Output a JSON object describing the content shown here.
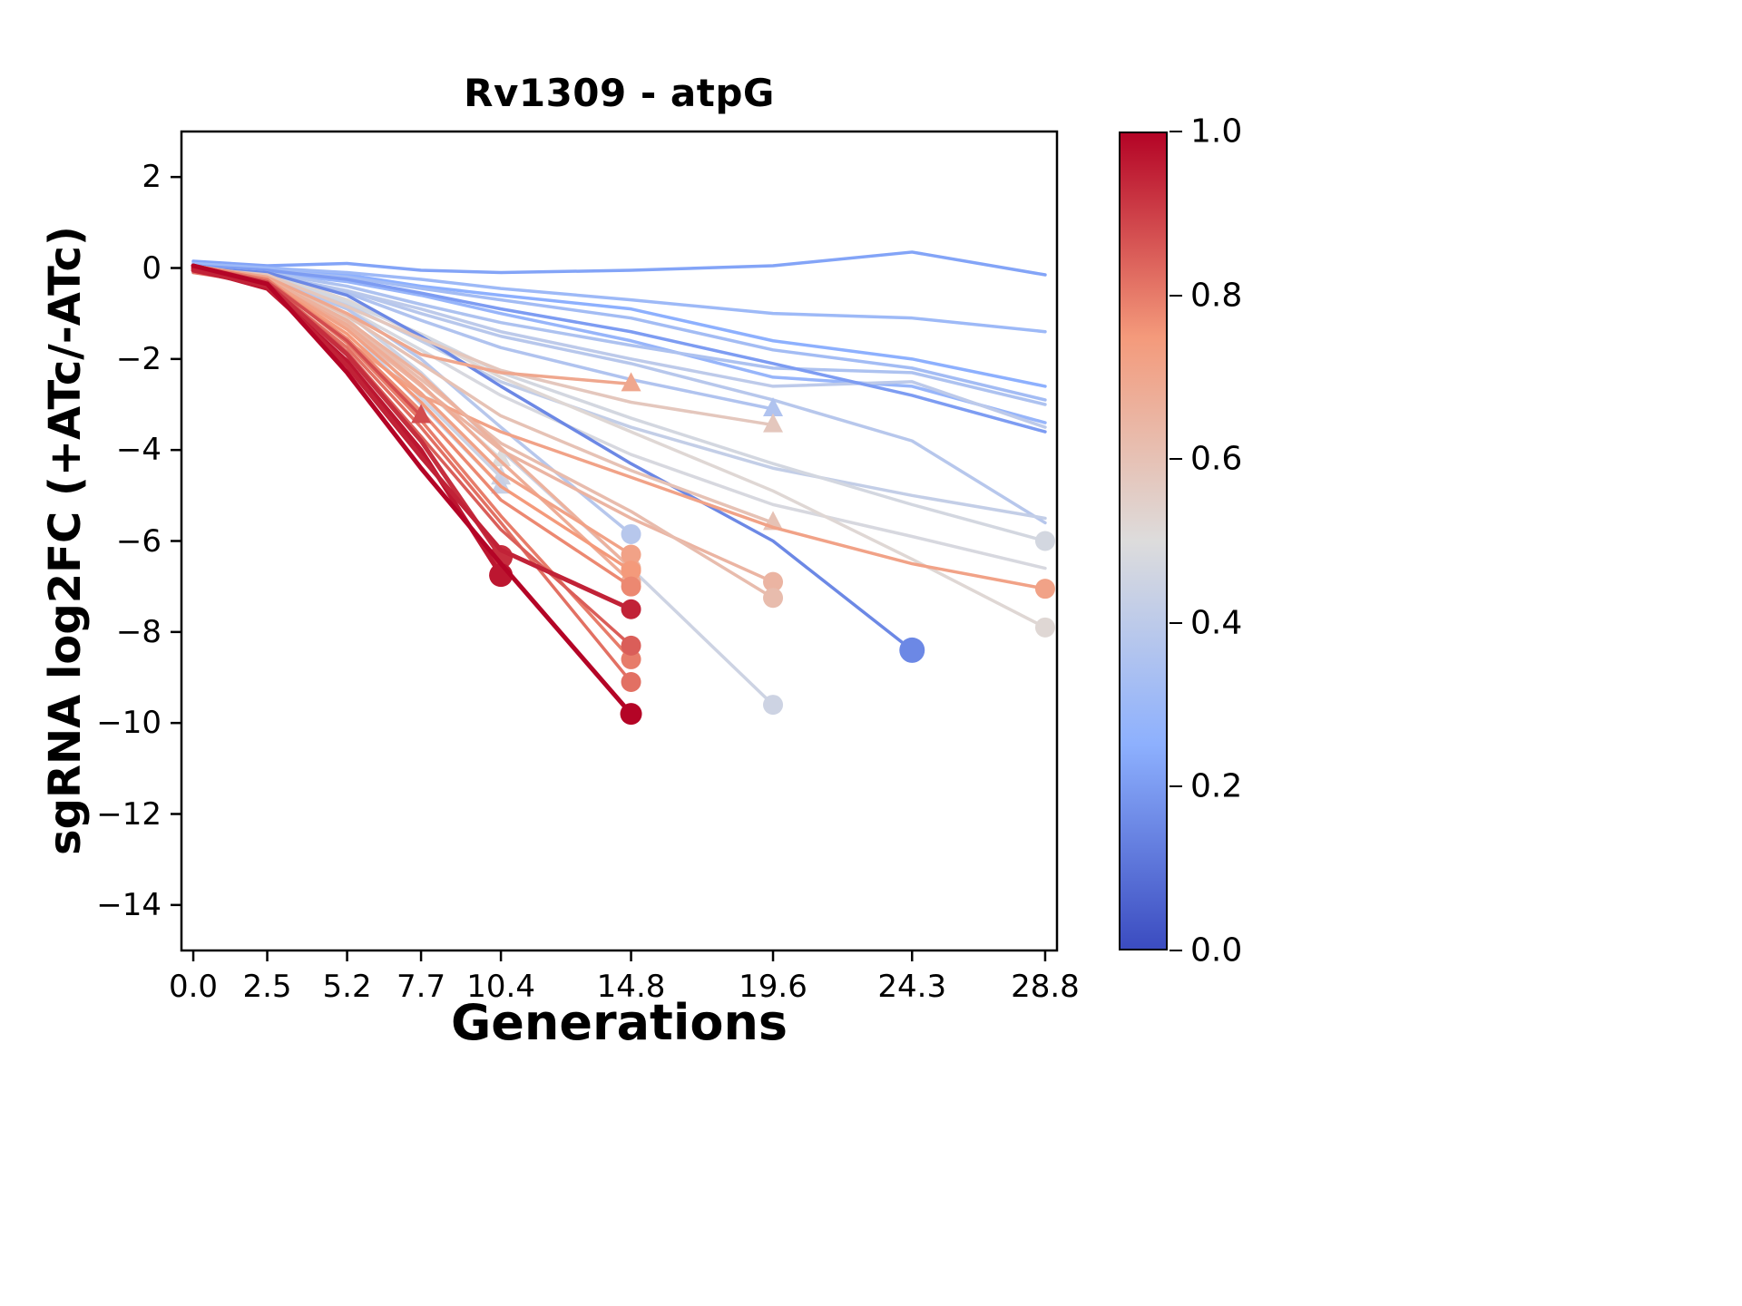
{
  "chart_data": {
    "type": "line",
    "title": "Rv1309 - atpG",
    "xlabel": "Generations",
    "ylabel": "sgRNA log2FC (+ATc/-ATc)",
    "xlim": [
      -0.4,
      29.2
    ],
    "ylim": [
      -15,
      3
    ],
    "grid": false,
    "legend": "none",
    "x_ticks": [
      0.0,
      2.5,
      5.2,
      7.7,
      10.4,
      14.8,
      19.6,
      24.3,
      28.8
    ],
    "x_tick_labels": [
      "0.0",
      "2.5",
      "5.2",
      "7.7",
      "10.4",
      "14.8",
      "19.6",
      "24.3",
      "28.8"
    ],
    "y_ticks": [
      2,
      0,
      -2,
      -4,
      -6,
      -8,
      -10,
      -12,
      -14
    ],
    "y_tick_labels": [
      "2",
      "0",
      "−2",
      "−4",
      "−6",
      "−8",
      "−10",
      "−12",
      "−14"
    ],
    "colorbar": {
      "cmap": "coolwarm",
      "anchors": [
        [
          0.0,
          "#3B4CC0"
        ],
        [
          0.25,
          "#8DB0FE"
        ],
        [
          0.5,
          "#DDDCDC"
        ],
        [
          0.75,
          "#F49A7B"
        ],
        [
          1.0,
          "#B40426"
        ]
      ],
      "tick_values": [
        0.0,
        0.2,
        0.4,
        0.6,
        0.8,
        1.0
      ],
      "tick_labels": [
        "0.0",
        "0.2",
        "0.4",
        "0.6",
        "0.8",
        "1.0"
      ]
    },
    "series": [
      {
        "v": 0.22,
        "marker": "none",
        "x": [
          0,
          2.5,
          5.2,
          7.7,
          10.4,
          14.8,
          19.6,
          24.3,
          28.8
        ],
        "y": [
          0.15,
          0.05,
          0.1,
          -0.05,
          -0.1,
          -0.05,
          0.05,
          0.35,
          -0.15
        ]
      },
      {
        "v": 0.25,
        "marker": "none",
        "x": [
          0,
          2.5,
          5.2,
          7.7,
          10.4,
          14.8,
          19.6,
          24.3,
          28.8
        ],
        "y": [
          0.1,
          0,
          -0.15,
          -0.4,
          -0.6,
          -0.9,
          -1.6,
          -2.0,
          -2.6
        ]
      },
      {
        "v": 0.3,
        "marker": "none",
        "x": [
          0,
          2.5,
          5.2,
          7.7,
          10.4,
          14.8,
          19.6,
          24.3,
          28.8
        ],
        "y": [
          0.1,
          0,
          -0.1,
          -0.25,
          -0.45,
          -0.7,
          -1.0,
          -1.1,
          -1.4
        ]
      },
      {
        "v": 0.32,
        "marker": "none",
        "x": [
          0,
          2.5,
          5.2,
          7.7,
          10.4,
          14.8,
          19.6,
          24.3,
          28.8
        ],
        "y": [
          0.05,
          -0.05,
          -0.2,
          -0.45,
          -0.7,
          -1.1,
          -1.8,
          -2.2,
          -2.9
        ]
      },
      {
        "v": 0.28,
        "marker": "none",
        "x": [
          0,
          2.5,
          5.2,
          7.7,
          10.4,
          14.8,
          19.6,
          24.3,
          28.8
        ],
        "y": [
          0,
          -0.1,
          -0.3,
          -0.6,
          -1.0,
          -1.6,
          -2.4,
          -2.6,
          -3.4
        ]
      },
      {
        "v": 0.35,
        "marker": "none",
        "x": [
          0,
          2.5,
          5.2,
          7.7,
          10.4,
          14.8,
          19.6,
          24.3,
          28.8
        ],
        "y": [
          0,
          -0.1,
          -0.4,
          -0.8,
          -1.2,
          -1.7,
          -2.2,
          -2.3,
          -3.0
        ]
      },
      {
        "v": 0.4,
        "marker": "none",
        "x": [
          0,
          2.5,
          5.2,
          7.7,
          10.4,
          14.8,
          19.6,
          24.3,
          28.8
        ],
        "y": [
          -0.1,
          -0.2,
          -0.5,
          -0.9,
          -1.4,
          -2.0,
          -2.6,
          -2.5,
          -3.5
        ]
      },
      {
        "v": 0.2,
        "marker": "none",
        "x": [
          0,
          2.5,
          5.2,
          7.7,
          10.4,
          14.8,
          19.6,
          24.3,
          28.8
        ],
        "y": [
          0.05,
          -0.05,
          -0.25,
          -0.55,
          -0.9,
          -1.4,
          -2.1,
          -2.8,
          -3.6
        ]
      },
      {
        "v": 0.38,
        "marker": "none",
        "x": [
          0,
          2.5,
          5.2,
          7.7,
          10.4,
          14.8,
          19.6,
          24.3,
          28.8
        ],
        "y": [
          0,
          -0.15,
          -0.5,
          -1.0,
          -1.5,
          -2.1,
          -2.9,
          -3.8,
          -5.6
        ]
      },
      {
        "v": 0.42,
        "marker": "none",
        "x": [
          0,
          2.5,
          5.2,
          7.7,
          10.4,
          14.8,
          19.6,
          24.3,
          28.8
        ],
        "y": [
          0,
          -0.2,
          -0.8,
          -1.6,
          -2.5,
          -3.5,
          -4.4,
          -5.0,
          -5.5
        ]
      },
      {
        "v": 0.48,
        "marker": "none",
        "x": [
          0,
          2.5,
          5.2,
          7.7,
          10.4,
          14.8,
          19.6,
          24.3,
          28.8
        ],
        "y": [
          -0.1,
          -0.25,
          -0.9,
          -1.8,
          -2.8,
          -4.1,
          -5.2,
          -5.9,
          -6.6
        ]
      },
      {
        "v": 0.52,
        "marker": "circle",
        "x": [
          0,
          2.5,
          5.2,
          7.7,
          10.4,
          14.8,
          19.6,
          24.3,
          28.8
        ],
        "y": [
          0,
          -0.1,
          -0.7,
          -1.5,
          -2.4,
          -3.6,
          -4.9,
          -6.4,
          -7.9
        ]
      },
      {
        "v": 0.47,
        "marker": "circle",
        "x": [
          0,
          2.5,
          5.2,
          7.7,
          10.4,
          14.8,
          19.6,
          24.3,
          28.8
        ],
        "y": [
          0,
          -0.15,
          -0.75,
          -1.45,
          -2.3,
          -3.3,
          -4.3,
          -5.2,
          -6.0
        ]
      },
      {
        "v": 0.36,
        "marker": "triangle",
        "x": [
          0,
          2.5,
          5.2,
          7.7,
          10.4,
          14.8,
          19.6
        ],
        "y": [
          0,
          -0.1,
          -0.55,
          -1.15,
          -1.75,
          -2.45,
          -3.1
        ]
      },
      {
        "v": 0.45,
        "marker": "circle",
        "x": [
          0,
          2.5,
          5.2,
          7.7,
          10.4,
          14.8,
          19.6
        ],
        "y": [
          0,
          -0.2,
          -1.0,
          -2.3,
          -4.0,
          -6.6,
          -9.6
        ]
      },
      {
        "v": 0.38,
        "marker": "circle",
        "x": [
          0,
          2.5,
          5.2,
          7.7,
          10.4,
          14.8
        ],
        "y": [
          0,
          -0.2,
          -0.9,
          -2.0,
          -3.5,
          -5.85
        ]
      },
      {
        "v": 0.15,
        "marker": "circle",
        "ms": 14,
        "x": [
          0,
          2.5,
          5.2,
          7.7,
          10.4,
          14.8,
          19.6,
          24.3
        ],
        "y": [
          0,
          -0.1,
          -0.6,
          -1.5,
          -2.6,
          -4.3,
          -6.0,
          -8.4
        ]
      },
      {
        "v": 0.5,
        "marker": "triangle",
        "x": [
          0,
          2.5,
          5.2,
          7.7,
          10.4
        ],
        "y": [
          0,
          -0.2,
          -1.1,
          -2.6,
          -4.2
        ]
      },
      {
        "v": 0.45,
        "marker": "triangle",
        "x": [
          0,
          2.5,
          5.2,
          7.7,
          10.4
        ],
        "y": [
          0,
          -0.25,
          -1.2,
          -2.85,
          -4.6
        ]
      },
      {
        "v": 0.43,
        "marker": "triangle",
        "x": [
          0,
          2.5,
          5.2,
          7.7,
          10.4
        ],
        "y": [
          0.05,
          -0.3,
          -1.3,
          -3.0,
          -4.8
        ]
      },
      {
        "v": 0.6,
        "marker": "triangle",
        "x": [
          0,
          2.5,
          5.2,
          7.7,
          10.4,
          14.8,
          19.6
        ],
        "y": [
          0,
          -0.2,
          -1.05,
          -2.1,
          -3.25,
          -4.45,
          -5.6
        ]
      },
      {
        "v": 0.58,
        "marker": "triangle",
        "x": [
          0,
          2.5,
          5.2,
          7.7,
          10.4,
          14.8,
          19.6
        ],
        "y": [
          0,
          -0.15,
          -0.85,
          -1.55,
          -2.25,
          -2.95,
          -3.45
        ]
      },
      {
        "v": 0.65,
        "marker": "circle",
        "x": [
          0,
          2.5,
          5.2,
          7.7,
          10.4,
          14.8,
          19.6
        ],
        "y": [
          0,
          -0.3,
          -1.3,
          -2.6,
          -4.0,
          -5.5,
          -6.9
        ]
      },
      {
        "v": 0.62,
        "marker": "circle",
        "x": [
          0,
          2.5,
          5.2,
          7.7,
          10.4,
          14.8,
          19.6
        ],
        "y": [
          0,
          -0.25,
          -1.2,
          -2.45,
          -3.85,
          -5.35,
          -7.25
        ]
      },
      {
        "v": 0.72,
        "marker": "circle",
        "x": [
          0,
          2.5,
          5.2,
          7.7,
          10.4,
          14.8,
          19.6,
          24.3,
          28.8
        ],
        "y": [
          0,
          -0.3,
          -1.6,
          -2.8,
          -3.6,
          -4.6,
          -5.7,
          -6.5,
          -7.05
        ]
      },
      {
        "v": 0.7,
        "marker": "triangle",
        "x": [
          0,
          2.5,
          5.2,
          7.7,
          10.4,
          14.8
        ],
        "y": [
          0.05,
          -0.2,
          -1.0,
          -1.9,
          -2.3,
          -2.55
        ]
      },
      {
        "v": 0.66,
        "marker": "circle",
        "x": [
          0,
          2.5,
          5.2,
          7.7,
          10.4,
          14.8
        ],
        "y": [
          -0.05,
          -0.25,
          -1.15,
          -2.35,
          -3.95,
          -6.6
        ]
      },
      {
        "v": 0.68,
        "marker": "circle",
        "x": [
          0,
          2.5,
          5.2,
          7.7,
          10.4,
          14.8
        ],
        "y": [
          0,
          -0.3,
          -1.25,
          -2.55,
          -4.25,
          -6.9
        ]
      },
      {
        "v": 0.72,
        "marker": "circle",
        "x": [
          0,
          2.5,
          5.2,
          7.7,
          10.4,
          14.8
        ],
        "y": [
          0,
          -0.25,
          -1.35,
          -2.75,
          -4.5,
          -6.3
        ]
      },
      {
        "v": 0.75,
        "marker": "circle",
        "x": [
          0,
          2.5,
          5.2,
          7.7,
          10.4,
          14.8
        ],
        "y": [
          -0.05,
          -0.3,
          -1.45,
          -2.95,
          -4.8,
          -6.65
        ]
      },
      {
        "v": 0.78,
        "marker": "circle",
        "x": [
          0,
          2.5,
          5.2,
          7.7,
          10.4,
          14.8
        ],
        "y": [
          0,
          -0.3,
          -1.55,
          -3.15,
          -5.1,
          -7.0
        ]
      },
      {
        "v": 0.8,
        "marker": "circle",
        "x": [
          0,
          2.5,
          5.2,
          7.7,
          10.4,
          14.8
        ],
        "y": [
          0.05,
          -0.25,
          -1.65,
          -3.35,
          -5.45,
          -8.6
        ]
      },
      {
        "v": 0.82,
        "marker": "circle",
        "x": [
          0,
          2.5,
          5.2,
          7.7,
          10.4,
          14.8
        ],
        "y": [
          -0.1,
          -0.35,
          -1.75,
          -3.5,
          -5.6,
          -9.1
        ]
      },
      {
        "v": 0.85,
        "marker": "circle",
        "x": [
          0,
          2.5,
          5.2,
          7.7,
          10.4,
          14.8
        ],
        "y": [
          0,
          -0.3,
          -1.85,
          -3.7,
          -5.75,
          -8.3
        ]
      },
      {
        "v": 0.88,
        "marker": "triangle",
        "x": [
          0,
          2.5,
          5.2,
          7.7
        ],
        "y": [
          0.05,
          -0.3,
          -1.6,
          -3.25
        ]
      },
      {
        "v": 0.93,
        "marker": "circle",
        "lw": 5,
        "ms": 13,
        "x": [
          0,
          2.5,
          5.2,
          7.7,
          10.4
        ],
        "y": [
          0.05,
          -0.35,
          -1.9,
          -3.8,
          -6.35
        ]
      },
      {
        "v": 0.97,
        "marker": "circle",
        "lw": 5,
        "ms": 13,
        "x": [
          0,
          2.5,
          5.2,
          7.7,
          10.4
        ],
        "y": [
          0,
          -0.45,
          -2.05,
          -4.0,
          -6.75
        ]
      },
      {
        "v": 0.95,
        "marker": "circle",
        "lw": 5,
        "x": [
          0,
          2.5,
          5.2,
          7.7,
          10.4,
          14.8
        ],
        "y": [
          -0.05,
          -0.4,
          -2.15,
          -4.15,
          -6.2,
          -7.5
        ]
      },
      {
        "v": 1.0,
        "marker": "circle",
        "lw": 5,
        "ms": 12,
        "x": [
          0,
          2.5,
          5.2,
          7.7,
          10.4,
          14.8
        ],
        "y": [
          0.05,
          -0.35,
          -2.3,
          -4.4,
          -6.5,
          -9.8
        ]
      }
    ]
  }
}
